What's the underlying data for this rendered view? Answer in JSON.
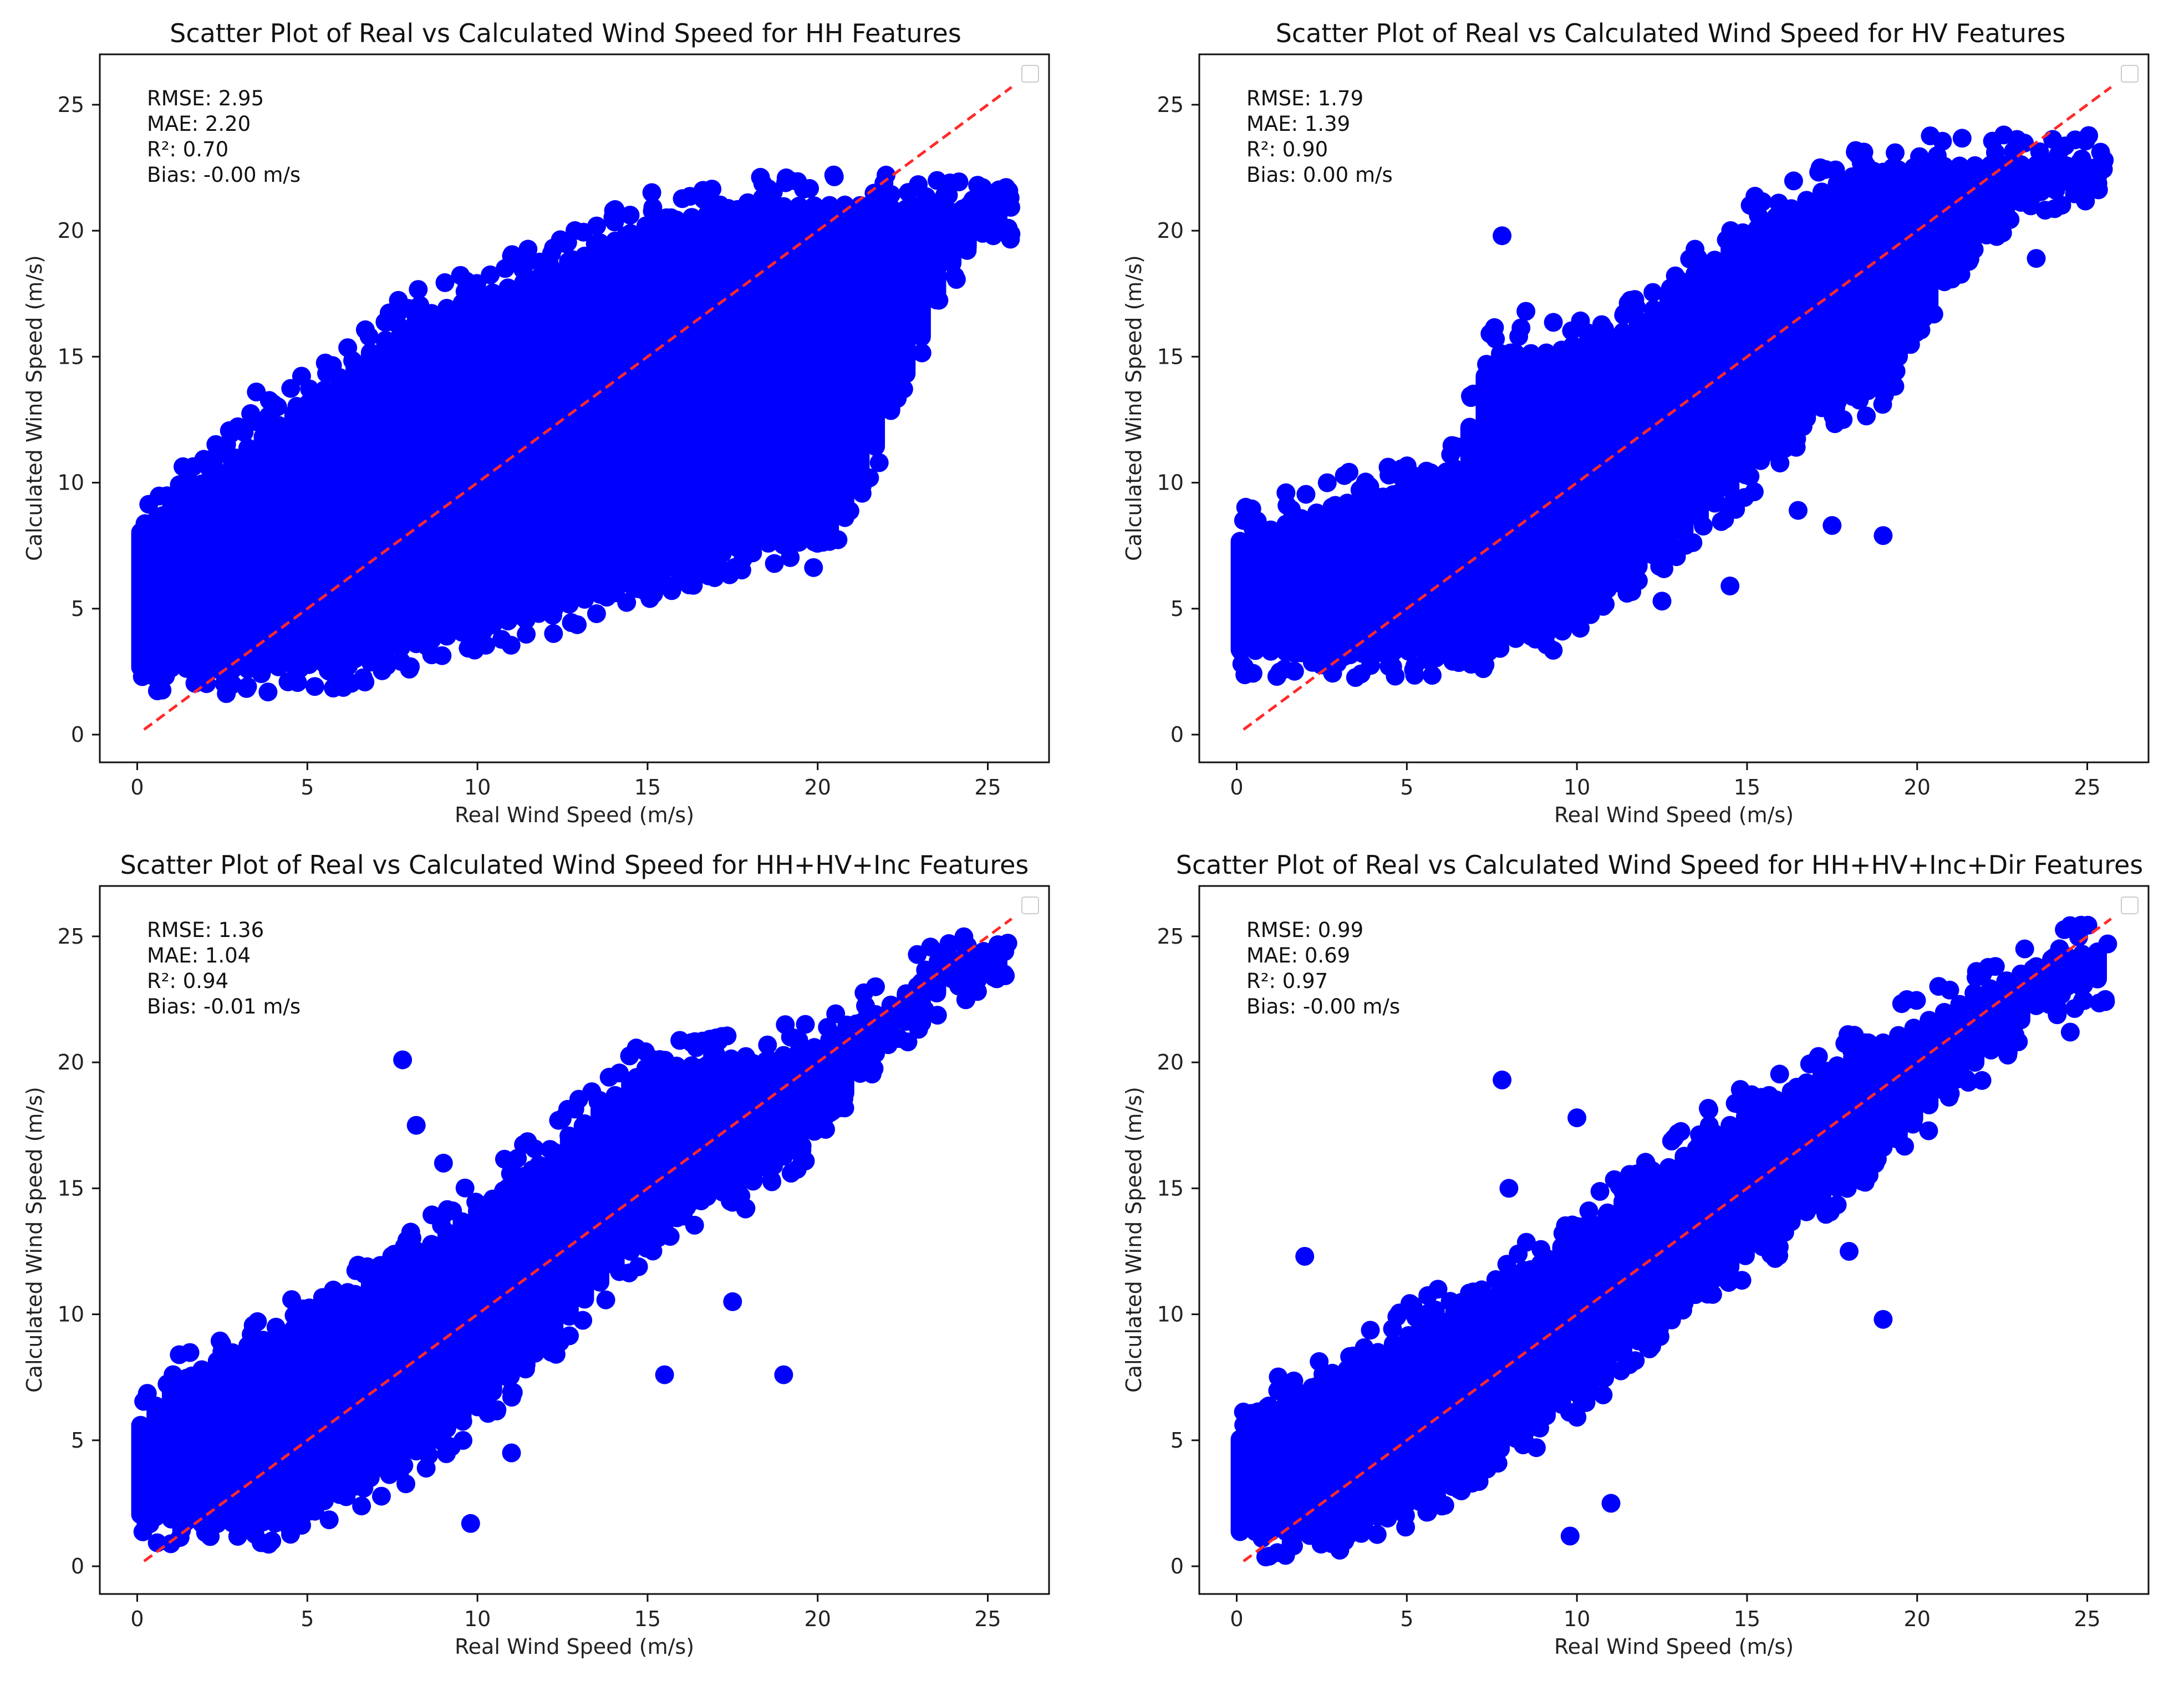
{
  "figure": {
    "background": "#ffffff",
    "point_color": "#0000ff",
    "line_color": "#ff2a2a"
  },
  "chart_data": [
    {
      "type": "scatter",
      "title": "Scatter Plot of Real vs Calculated Wind Speed for HH Features",
      "xlabel": "Real Wind Speed (m/s)",
      "ylabel": "Calculated Wind Speed (m/s)",
      "xlim": [
        -1.1,
        26.8
      ],
      "ylim": [
        -1.1,
        27.0
      ],
      "xticks": [
        0,
        5,
        10,
        15,
        20,
        25
      ],
      "yticks": [
        0,
        5,
        10,
        15,
        20,
        25
      ],
      "stats": [
        "RMSE: 2.95",
        "MAE: 2.20",
        "R²: 0.70",
        "Bias: -0.00 m/s"
      ],
      "reference_line": {
        "style": "dashed",
        "color": "#ff2a2a",
        "from": [
          0.2,
          0.2
        ],
        "to": [
          25.7,
          25.7
        ]
      },
      "legend": "top-right (empty)",
      "density": {
        "band_lower": [
          [
            0,
            2.3
          ],
          [
            3,
            2.2
          ],
          [
            6,
            2.5
          ],
          [
            9,
            3.5
          ],
          [
            12,
            4.5
          ],
          [
            15,
            5.8
          ],
          [
            18,
            7.2
          ],
          [
            20.5,
            7.3
          ],
          [
            22,
            12.0
          ],
          [
            24,
            18.5
          ],
          [
            25.5,
            20.3
          ]
        ],
        "band_upper": [
          [
            0,
            8.3
          ],
          [
            3,
            11.5
          ],
          [
            5,
            13.5
          ],
          [
            8,
            16.8
          ],
          [
            12,
            18.6
          ],
          [
            15,
            20.6
          ],
          [
            18,
            21.3
          ],
          [
            21,
            21.4
          ],
          [
            24,
            21.1
          ],
          [
            25.5,
            21.2
          ]
        ],
        "x_range": [
          0.1,
          25.7
        ],
        "outliers": [
          [
            25.6,
            21.3
          ],
          [
            25.6,
            20.1
          ],
          [
            14.0,
            20.8
          ],
          [
            11.0,
            19.0
          ],
          [
            3.5,
            13.6
          ],
          [
            13.5,
            4.8
          ],
          [
            8.0,
            2.6
          ],
          [
            20.8,
            18.2
          ],
          [
            16.2,
            17.3
          ]
        ]
      }
    },
    {
      "type": "scatter",
      "title": "Scatter Plot of Real vs Calculated Wind Speed for HV Features",
      "xlabel": "Real Wind Speed (m/s)",
      "ylabel": "Calculated Wind Speed (m/s)",
      "xlim": [
        -1.1,
        26.8
      ],
      "ylim": [
        -1.1,
        27.0
      ],
      "xticks": [
        0,
        5,
        10,
        15,
        20,
        25
      ],
      "yticks": [
        0,
        5,
        10,
        15,
        20,
        25
      ],
      "stats": [
        "RMSE: 1.79",
        "MAE: 1.39",
        "R²: 0.90",
        "Bias: 0.00 m/s"
      ],
      "reference_line": {
        "style": "dashed",
        "color": "#ff2a2a",
        "from": [
          0.2,
          0.2
        ],
        "to": [
          25.7,
          25.7
        ]
      },
      "legend": "top-right (empty)",
      "density": {
        "band_lower": [
          [
            0,
            3.0
          ],
          [
            3,
            2.8
          ],
          [
            6,
            3.0
          ],
          [
            9,
            3.6
          ],
          [
            11,
            5.5
          ],
          [
            13,
            7.5
          ],
          [
            15,
            10.0
          ],
          [
            17,
            12.5
          ],
          [
            19,
            13.5
          ],
          [
            20,
            16.0
          ],
          [
            22,
            20.0
          ],
          [
            24,
            21.5
          ],
          [
            25.5,
            21.8
          ]
        ],
        "band_upper": [
          [
            0,
            8.0
          ],
          [
            3,
            9.5
          ],
          [
            5,
            10.0
          ],
          [
            6.5,
            11.0
          ],
          [
            7.5,
            15.5
          ],
          [
            9,
            15.5
          ],
          [
            11,
            16.0
          ],
          [
            13,
            18.0
          ],
          [
            15,
            20.3
          ],
          [
            18,
            22.5
          ],
          [
            20,
            22.9
          ],
          [
            23,
            23.0
          ],
          [
            25.5,
            22.9
          ]
        ],
        "x_range": [
          0.1,
          25.6
        ],
        "outliers": [
          [
            7.8,
            19.8
          ],
          [
            19.0,
            7.9
          ],
          [
            14.5,
            5.9
          ],
          [
            12.5,
            5.3
          ],
          [
            25.5,
            22.8
          ],
          [
            23.5,
            18.9
          ],
          [
            8.5,
            16.8
          ],
          [
            16.5,
            8.9
          ],
          [
            17.5,
            8.3
          ],
          [
            10.0,
            5.0
          ]
        ]
      }
    },
    {
      "type": "scatter",
      "title": "Scatter Plot of Real vs Calculated Wind Speed for HH+HV+Inc Features",
      "xlabel": "Real Wind Speed (m/s)",
      "ylabel": "Calculated Wind Speed (m/s)",
      "xlim": [
        -1.1,
        26.8
      ],
      "ylim": [
        -1.1,
        27.0
      ],
      "xticks": [
        0,
        5,
        10,
        15,
        20,
        25
      ],
      "yticks": [
        0,
        5,
        10,
        15,
        20,
        25
      ],
      "stats": [
        "RMSE: 1.36",
        "MAE: 1.04",
        "R²: 0.94",
        "Bias: -0.01 m/s"
      ],
      "reference_line": {
        "style": "dashed",
        "color": "#ff2a2a",
        "from": [
          0.2,
          0.2
        ],
        "to": [
          25.7,
          25.7
        ]
      },
      "legend": "top-right (empty)",
      "density": {
        "band_lower": [
          [
            0,
            1.7
          ],
          [
            2,
            1.3
          ],
          [
            4,
            1.4
          ],
          [
            6,
            2.5
          ],
          [
            8,
            4.0
          ],
          [
            10,
            6.0
          ],
          [
            12,
            8.5
          ],
          [
            14,
            11.5
          ],
          [
            16,
            14.0
          ],
          [
            18,
            14.8
          ],
          [
            20,
            17.0
          ],
          [
            22,
            20.5
          ],
          [
            24,
            23.0
          ],
          [
            25.5,
            23.5
          ]
        ],
        "band_upper": [
          [
            0,
            5.8
          ],
          [
            1,
            7.5
          ],
          [
            3,
            9.0
          ],
          [
            5,
            10.0
          ],
          [
            8,
            12.5
          ],
          [
            10,
            14.5
          ],
          [
            12,
            16.5
          ],
          [
            14,
            19.0
          ],
          [
            15,
            20.2
          ],
          [
            18,
            20.3
          ],
          [
            20,
            21.0
          ],
          [
            22,
            22.5
          ],
          [
            24,
            24.5
          ],
          [
            25.5,
            24.5
          ]
        ],
        "x_range": [
          0.1,
          25.6
        ],
        "outliers": [
          [
            7.8,
            20.1
          ],
          [
            19.0,
            7.6
          ],
          [
            15.5,
            7.6
          ],
          [
            9.8,
            1.7
          ],
          [
            11.0,
            4.5
          ],
          [
            25.5,
            24.4
          ],
          [
            23.0,
            22.0
          ],
          [
            8.2,
            17.5
          ],
          [
            9.0,
            16.0
          ],
          [
            17.5,
            10.5
          ]
        ]
      }
    },
    {
      "type": "scatter",
      "title": "Scatter Plot of Real vs Calculated Wind Speed for HH+HV+Inc+Dir Features",
      "xlabel": "Real Wind Speed (m/s)",
      "ylabel": "Calculated Wind Speed (m/s)",
      "xlim": [
        -1.1,
        26.8
      ],
      "ylim": [
        -1.1,
        27.0
      ],
      "xticks": [
        0,
        5,
        10,
        15,
        20,
        25
      ],
      "yticks": [
        0,
        5,
        10,
        15,
        20,
        25
      ],
      "stats": [
        "RMSE: 0.99",
        "MAE: 0.69",
        "R²: 0.97",
        "Bias: -0.00 m/s"
      ],
      "reference_line": {
        "style": "dashed",
        "color": "#ff2a2a",
        "from": [
          0.2,
          0.2
        ],
        "to": [
          25.7,
          25.7
        ]
      },
      "legend": "top-right (empty)",
      "density": {
        "band_lower": [
          [
            0,
            1.0
          ],
          [
            2,
            1.0
          ],
          [
            4,
            1.5
          ],
          [
            6,
            2.8
          ],
          [
            8,
            4.5
          ],
          [
            10,
            6.5
          ],
          [
            12,
            8.8
          ],
          [
            14,
            11.0
          ],
          [
            16,
            13.0
          ],
          [
            18,
            15.0
          ],
          [
            20,
            17.5
          ],
          [
            22,
            20.0
          ],
          [
            24,
            22.5
          ],
          [
            25.5,
            23.0
          ]
        ],
        "band_upper": [
          [
            0,
            5.3
          ],
          [
            1,
            6.5
          ],
          [
            3,
            8.0
          ],
          [
            5,
            9.5
          ],
          [
            8,
            11.5
          ],
          [
            10,
            13.5
          ],
          [
            12,
            15.5
          ],
          [
            14,
            17.5
          ],
          [
            16,
            19.0
          ],
          [
            18,
            20.5
          ],
          [
            20,
            21.8
          ],
          [
            22,
            23.2
          ],
          [
            24,
            24.5
          ],
          [
            25.5,
            24.8
          ]
        ],
        "x_range": [
          0.1,
          25.6
        ],
        "outliers": [
          [
            7.8,
            19.3
          ],
          [
            19.0,
            9.8
          ],
          [
            9.8,
            1.2
          ],
          [
            11.0,
            2.5
          ],
          [
            2.0,
            12.3
          ],
          [
            25.6,
            24.7
          ],
          [
            24.5,
            21.2
          ],
          [
            8.0,
            15.0
          ],
          [
            10.0,
            17.8
          ],
          [
            18.0,
            12.5
          ]
        ]
      }
    }
  ]
}
